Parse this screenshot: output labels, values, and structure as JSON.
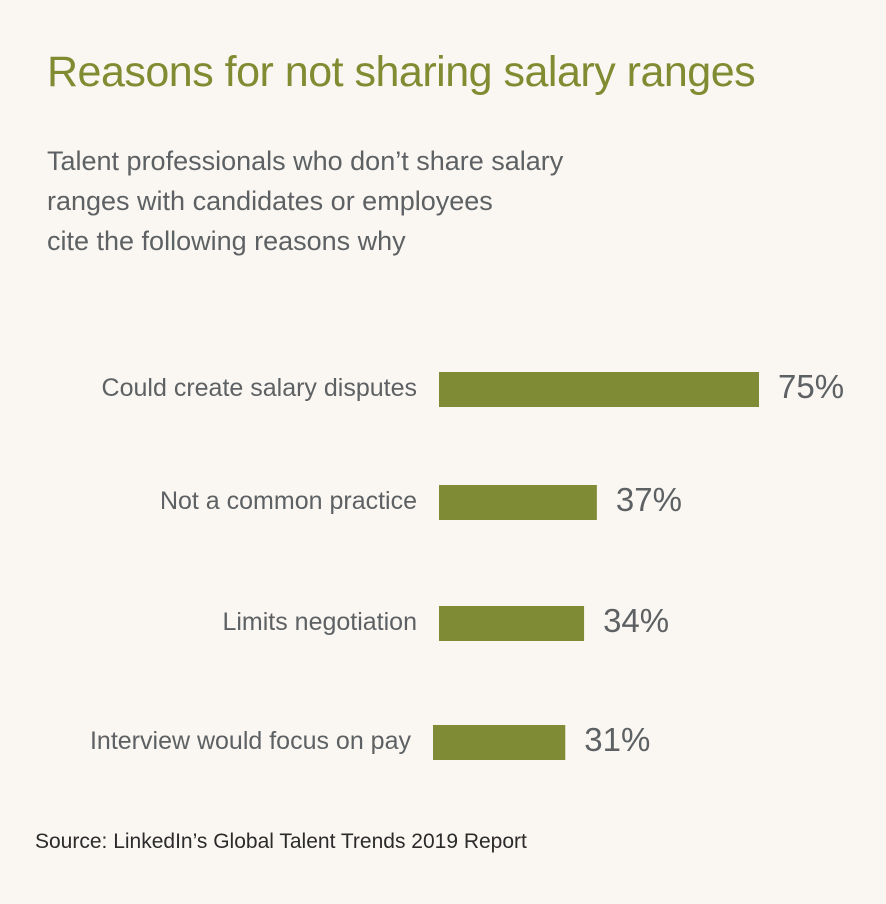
{
  "header": {
    "title": "Reasons for not sharing salary ranges",
    "subtitle_lines": [
      "Talent professionals who don’t share salary",
      "ranges with candidates or employees",
      "cite the following reasons why"
    ]
  },
  "footer": {
    "source": "Source: LinkedIn’s Global Talent Trends 2019 Report"
  },
  "colors": {
    "bar": "#808b35",
    "title": "#7f8c32",
    "text": "#5d6163",
    "background": "#faf7f2"
  },
  "chart_data": {
    "type": "bar",
    "orientation": "horizontal",
    "categories": [
      "Could create salary disputes",
      "Not a common practice",
      "Limits negotiation",
      "Interview would focus on pay"
    ],
    "values": [
      75,
      37,
      34,
      31
    ],
    "value_labels": [
      "75%",
      "37%",
      "34%",
      "31%"
    ],
    "unit": "%",
    "xlim": [
      0,
      75
    ],
    "grid": false,
    "legend": "none"
  }
}
